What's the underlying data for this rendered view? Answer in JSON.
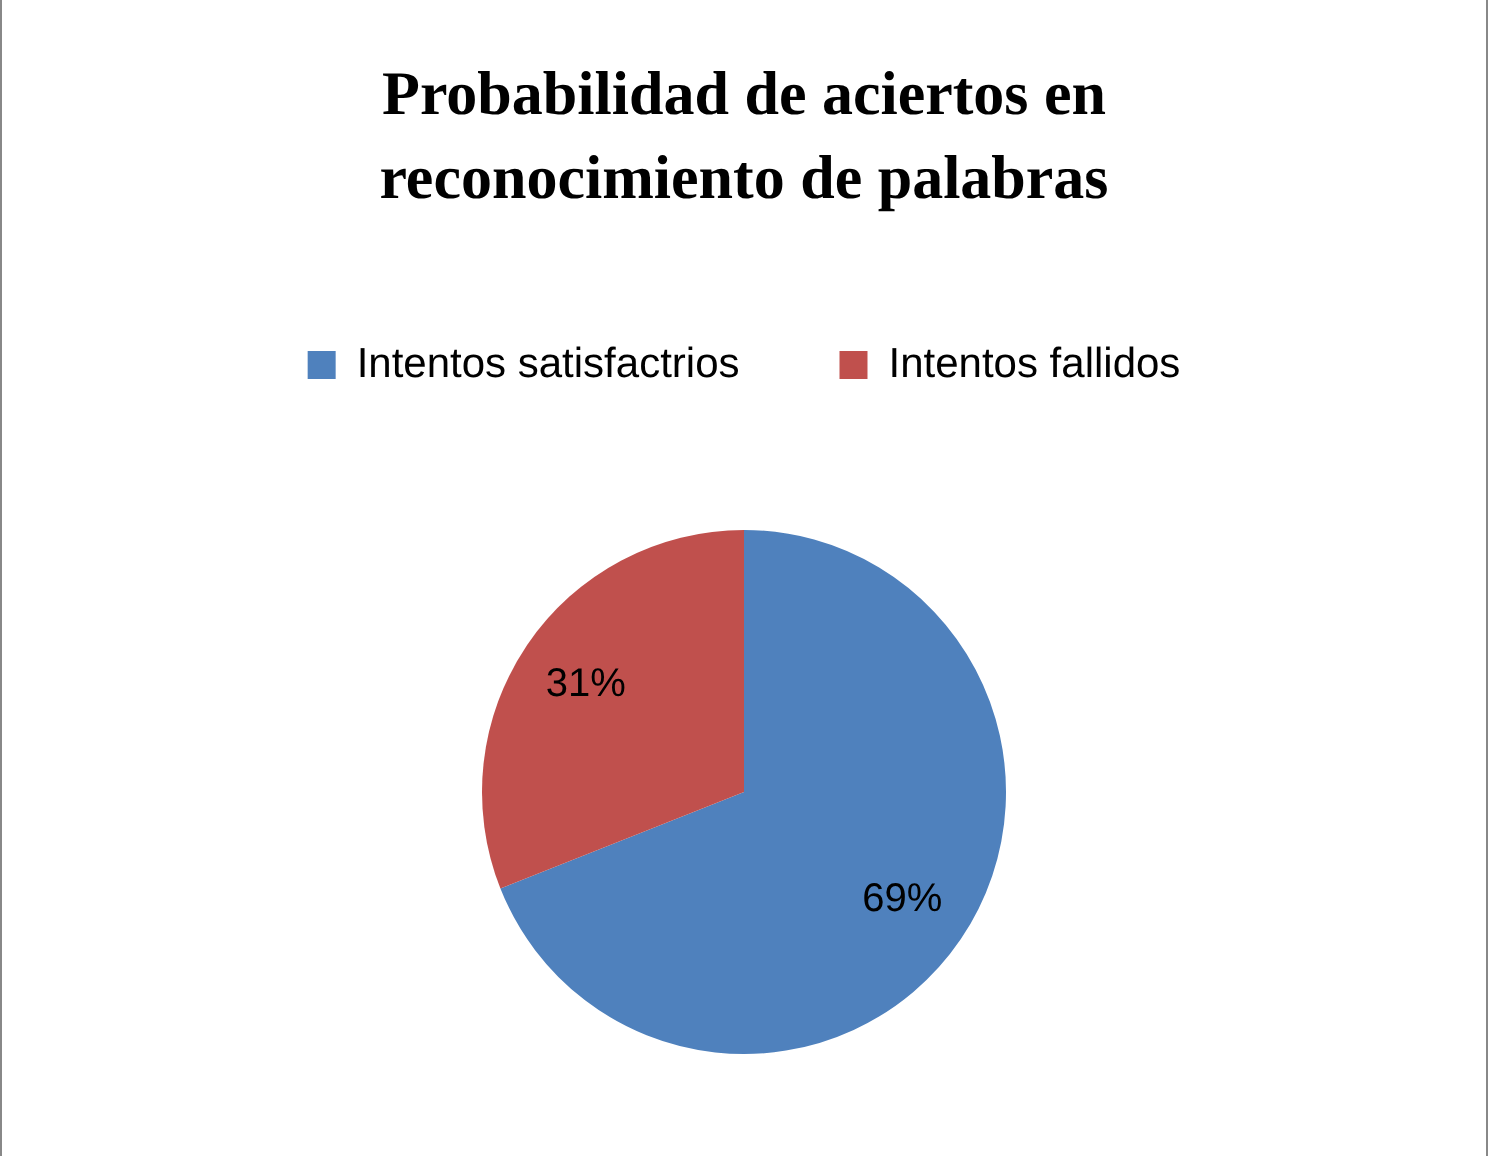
{
  "chart_data": {
    "type": "pie",
    "title": "Probabilidad de aciertos en reconocimiento de palabras",
    "categories": [
      "Intentos satisfactrios",
      "Intentos fallidos"
    ],
    "values": [
      69,
      31
    ],
    "colors": [
      "#4f81bd",
      "#c0504d"
    ],
    "value_labels": [
      "69%",
      "31%"
    ],
    "legend": "top"
  }
}
